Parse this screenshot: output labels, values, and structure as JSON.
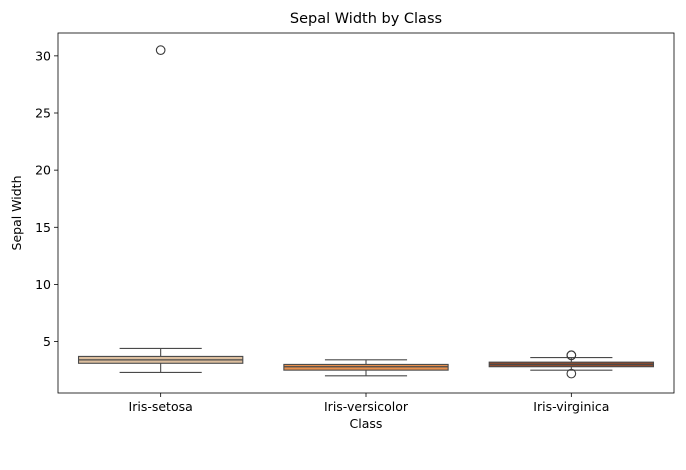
{
  "chart_data": {
    "type": "box",
    "title": "Sepal Width by Class",
    "xlabel": "Class",
    "ylabel": "Sepal Width",
    "ylim": [
      0.5,
      32.0
    ],
    "yticks": [
      5,
      10,
      15,
      20,
      25,
      30
    ],
    "grid": false,
    "legend": "none",
    "categories": [
      "Iris-setosa",
      "Iris-versicolor",
      "Iris-virginica"
    ],
    "boxes": [
      {
        "category": "Iris-setosa",
        "whisker_low": 2.3,
        "q1": 3.1,
        "median": 3.4,
        "q3": 3.7,
        "whisker_high": 4.4,
        "outliers": [
          30.5
        ],
        "color": "#ddbf9f"
      },
      {
        "category": "Iris-versicolor",
        "whisker_low": 2.0,
        "q1": 2.5,
        "median": 2.8,
        "q3": 3.0,
        "whisker_high": 3.4,
        "outliers": [],
        "color": "#e8904e"
      },
      {
        "category": "Iris-virginica",
        "whisker_low": 2.5,
        "q1": 2.8,
        "median": 3.0,
        "q3": 3.2,
        "whisker_high": 3.6,
        "outliers": [
          3.8,
          3.8,
          2.2
        ],
        "color": "#8e4b2e"
      }
    ]
  }
}
